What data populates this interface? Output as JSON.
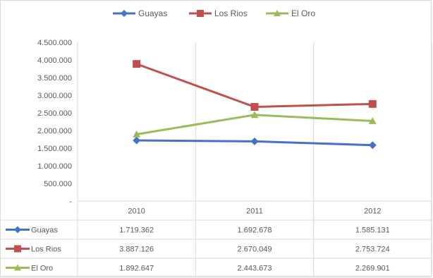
{
  "chart_data": {
    "type": "line",
    "categories": [
      "2010",
      "2011",
      "2012"
    ],
    "series": [
      {
        "name": "Guayas",
        "color": "#4472c4",
        "marker": "diamond",
        "values": [
          1719362,
          1692678,
          1585131
        ],
        "labels": [
          "1.719.362",
          "1.692.678",
          "1.585.131"
        ]
      },
      {
        "name": "Los Rios",
        "color": "#c0504d",
        "marker": "square",
        "values": [
          3887126,
          2670049,
          2753724
        ],
        "labels": [
          "3.887.126",
          "2.670.049",
          "2.753.724"
        ]
      },
      {
        "name": "El Oro",
        "color": "#9bbb59",
        "marker": "triangle",
        "values": [
          1892647,
          2443673,
          2269901
        ],
        "labels": [
          "1.892.647",
          "2.443.673",
          "2.269.901"
        ]
      }
    ],
    "ylim": [
      0,
      4500000
    ],
    "yticks": [
      0,
      500000,
      1000000,
      1500000,
      2000000,
      2500000,
      3000000,
      3500000,
      4000000,
      4500000
    ],
    "ytick_labels": [
      "-",
      "500.000",
      "1.000.000",
      "1.500.000",
      "2.000.000",
      "2.500.000",
      "3.000.000",
      "3.500.000",
      "4.000.000",
      "4.500.000"
    ],
    "grid": "vertical",
    "legend_position": "top",
    "data_table": true
  }
}
